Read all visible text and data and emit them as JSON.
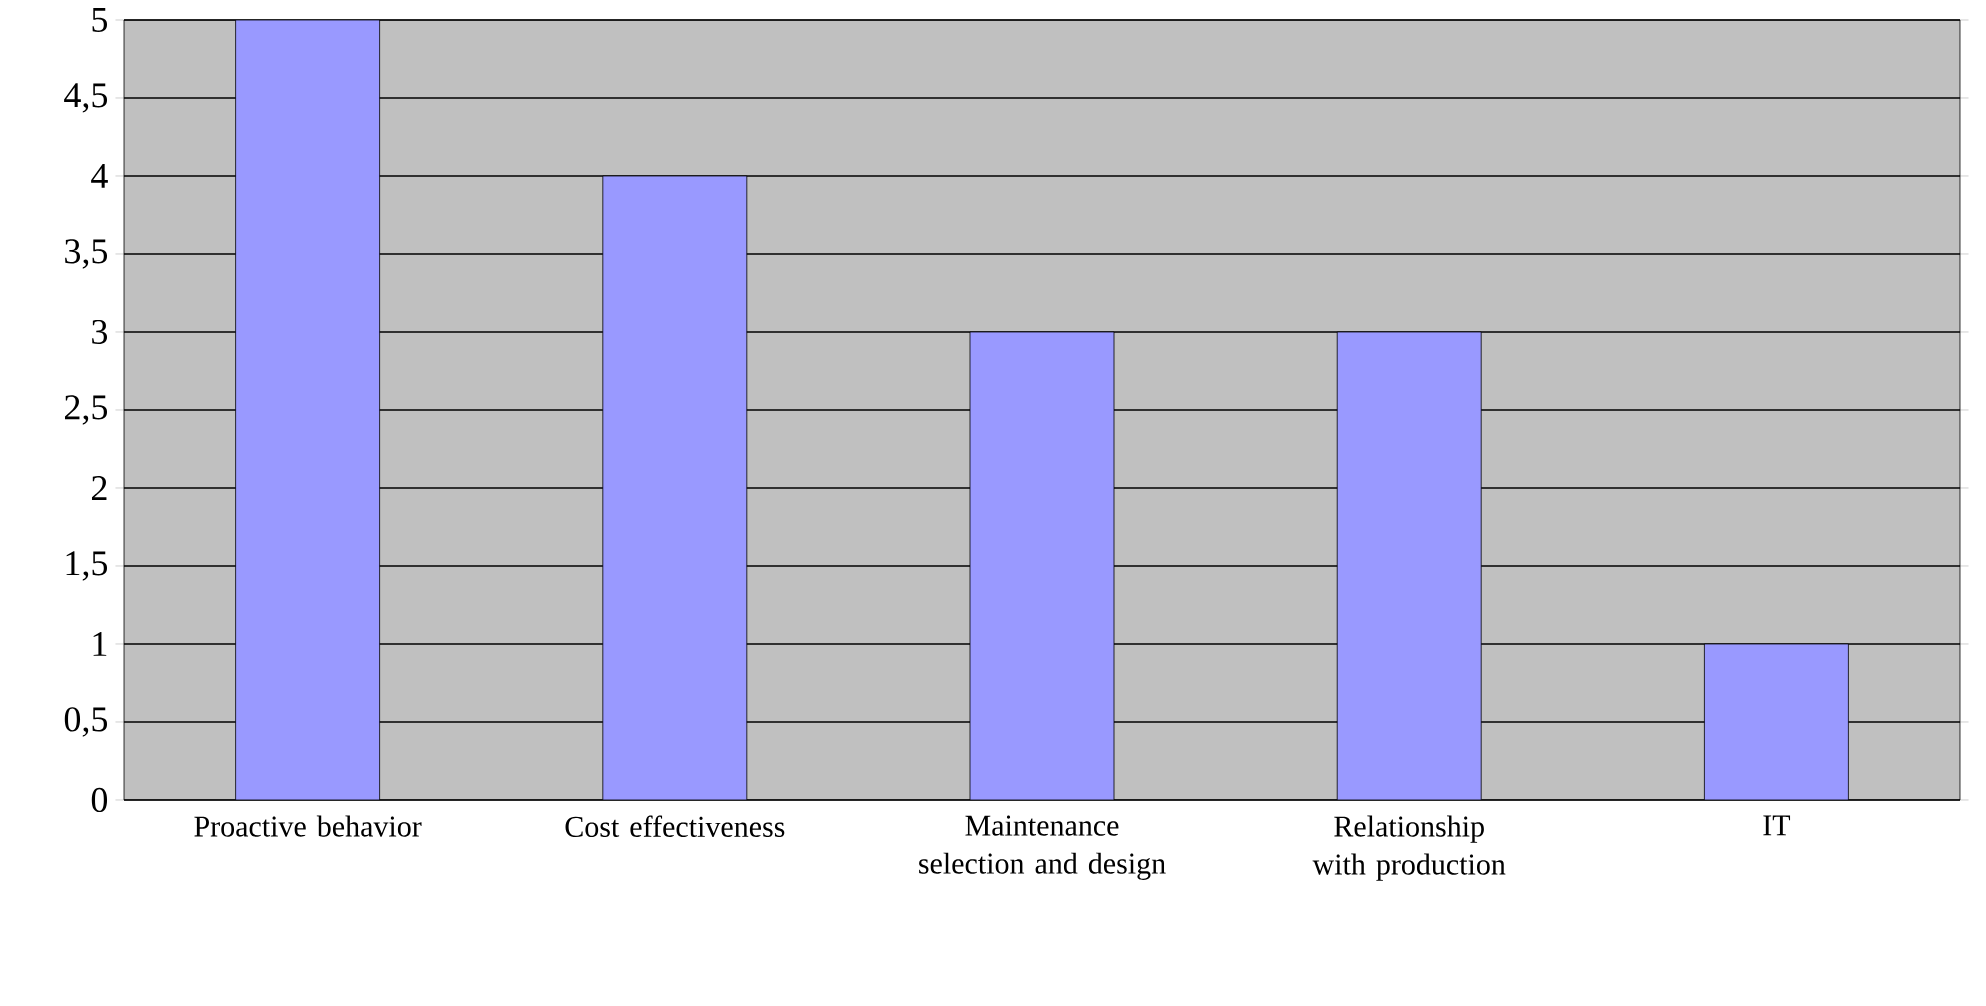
{
  "chart_data": {
    "type": "bar",
    "categories": [
      "Proactive behavior",
      "Cost effectiveness",
      "Maintenance selection and design",
      "Relationship with production",
      "IT"
    ],
    "values": [
      5,
      4,
      3,
      3,
      1
    ],
    "color": "#9999ff",
    "ylim": [
      0,
      5
    ],
    "yticks": [
      0,
      {
        "value": 0.5,
        "label": "0,5"
      },
      1,
      {
        "value": 1.5,
        "label": "1,5"
      },
      2,
      {
        "value": 2.5,
        "label": "2,5"
      },
      3,
      {
        "value": 3.5,
        "label": "3,5"
      },
      4,
      {
        "value": 4.5,
        "label": "4,5"
      },
      5
    ],
    "grid": "y"
  }
}
